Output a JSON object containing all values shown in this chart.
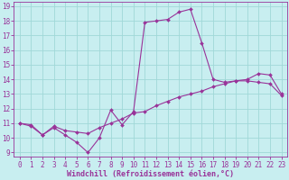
{
  "xlabel": "Windchill (Refroidissement éolien,°C)",
  "xlim": [
    -0.5,
    23.5
  ],
  "ylim": [
    8.7,
    19.3
  ],
  "yticks": [
    9,
    10,
    11,
    12,
    13,
    14,
    15,
    16,
    17,
    18,
    19
  ],
  "xticks": [
    0,
    1,
    2,
    3,
    4,
    5,
    6,
    7,
    8,
    9,
    10,
    11,
    12,
    13,
    14,
    15,
    16,
    17,
    18,
    19,
    20,
    21,
    22,
    23
  ],
  "background_color": "#c8eef0",
  "grid_color": "#a0d8d8",
  "line_color": "#993399",
  "spine_color": "#993399",
  "line1_x": [
    0,
    1,
    2,
    3,
    4,
    5,
    6,
    7,
    8,
    9,
    10,
    11,
    12,
    13,
    14,
    15,
    16,
    17,
    18,
    19,
    20,
    21,
    22,
    23
  ],
  "line1_y": [
    11.0,
    10.9,
    10.2,
    10.7,
    10.2,
    9.7,
    9.0,
    10.0,
    11.9,
    10.9,
    11.8,
    17.9,
    18.0,
    18.1,
    18.6,
    18.8,
    16.5,
    14.0,
    13.8,
    13.9,
    14.0,
    14.4,
    14.3,
    13.0
  ],
  "line2_x": [
    0,
    1,
    2,
    3,
    4,
    5,
    6,
    7,
    8,
    9,
    10,
    11,
    12,
    13,
    14,
    15,
    16,
    17,
    18,
    19,
    20,
    21,
    22,
    23
  ],
  "line2_y": [
    11.0,
    10.8,
    10.2,
    10.8,
    10.5,
    10.4,
    10.3,
    10.7,
    11.0,
    11.3,
    11.7,
    11.8,
    12.2,
    12.5,
    12.8,
    13.0,
    13.2,
    13.5,
    13.7,
    13.9,
    13.9,
    13.8,
    13.7,
    12.9
  ],
  "tick_fontsize": 5.5,
  "xlabel_fontsize": 6.0,
  "linewidth": 0.8,
  "markersize": 2.0
}
